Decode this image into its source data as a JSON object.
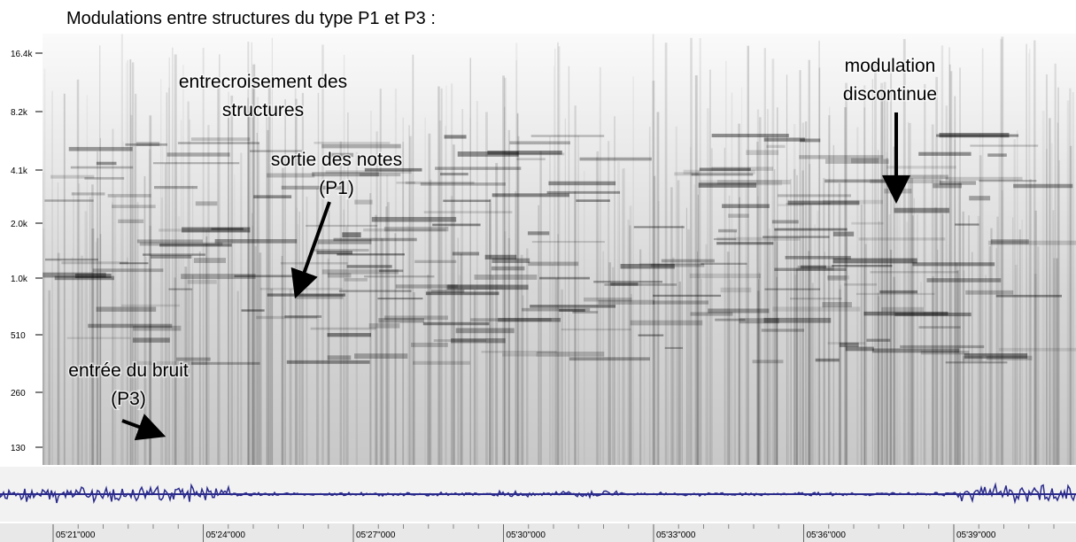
{
  "title": "Modulations entre structures du type P1 et P3 :",
  "frequency_labels": [
    "16.4k",
    "8.2k",
    "4.1k",
    "2.0k",
    "1.0k",
    "510",
    "260",
    "130"
  ],
  "time_labels": [
    "05'21\"000",
    "05'24\"000",
    "05'27\"000",
    "05'30\"000",
    "05'33\"000",
    "05'36\"000",
    "05'39\"000"
  ],
  "annotations": [
    {
      "lines": [
        "entrecroisement des",
        "structures"
      ]
    },
    {
      "lines": [
        "sortie des notes",
        "(P1)"
      ]
    },
    {
      "lines": [
        "modulation",
        "discontinue"
      ]
    },
    {
      "lines": [
        "entrée du bruit",
        "(P3)"
      ]
    }
  ]
}
